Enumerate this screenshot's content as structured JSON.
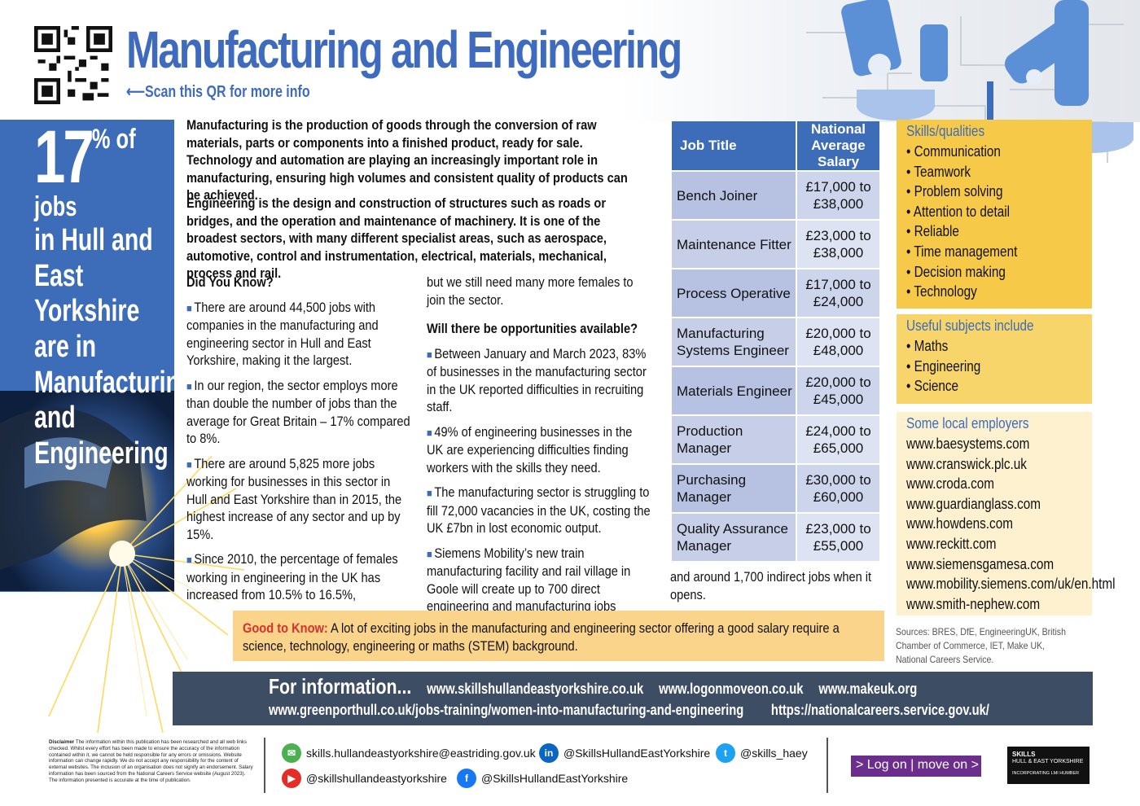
{
  "header": {
    "title": "Manufacturing and Engineering",
    "qr_hint": "⟵Scan this QR for more info"
  },
  "stat": {
    "number": "17",
    "suffix": "% of jobs",
    "line1": "in Hull and East",
    "line2": "Yorkshire are in",
    "line3": "Manufacturing",
    "line4": "and Engineering"
  },
  "intro": {
    "p1": "Manufacturing is the production of goods through the conversion of raw materials, parts or components into a finished product, ready for sale. Technology and automation are playing an increasingly important role in manufacturing, ensuring high volumes and consistent quality of products can be achieved.",
    "p2": "Engineering is the design and construction of structures such as roads or bridges, and the operation and maintenance of machinery. It is one of the broadest sectors, with many different specialist areas, such as aerospace, automotive, control and instrumentation, electrical, materials, mechanical, process and rail."
  },
  "did_you_know": {
    "heading": "Did You Know?",
    "items": [
      "There are around 44,500 jobs with companies in the manufacturing and engineering sector in Hull and East Yorkshire, making it the largest.",
      "In our region, the sector employs more than double the number of jobs than the average for Great Britain – 17% compared to 8%.",
      "There are around 5,825 more jobs working for businesses in this sector in Hull and East Yorkshire than in 2015, the highest increase of any sector and up by 15%.",
      "Since 2010, the percentage of females working in engineering in the UK has increased from 10.5% to 16.5%,"
    ],
    "continuation": "but we still need many more females to join the sector."
  },
  "opportunities": {
    "heading": "Will there be opportunities available?",
    "items": [
      "Between January and March 2023, 83% of businesses in the manufacturing sector in the UK reported difficulties in recruiting staff.",
      "49% of engineering businesses in the UK are experiencing difficulties finding workers with the skills they need.",
      "The manufacturing sector is struggling to fill 72,000 vacancies in the UK, costing the UK £7bn in lost economic output.",
      "Siemens Mobility’s new train manufacturing facility and rail village in Goole will create up to 700 direct engineering and manufacturing jobs"
    ],
    "continuation": "and around 1,700 indirect jobs when it opens."
  },
  "salary_table": {
    "col1": "Job Title",
    "col2": "National Average Salary",
    "rows": [
      {
        "job": "Bench Joiner",
        "salary": "£17,000 to £38,000"
      },
      {
        "job": "Maintenance Fitter",
        "salary": "£23,000 to £38,000"
      },
      {
        "job": "Process Operative",
        "salary": "£17,000 to £24,000"
      },
      {
        "job": "Manufacturing Systems Engineer",
        "salary": "£20,000 to £48,000"
      },
      {
        "job": "Materials Engineer",
        "salary": "£20,000 to £45,000"
      },
      {
        "job": "Production Manager",
        "salary": "£24,000 to £65,000"
      },
      {
        "job": "Purchasing Manager",
        "salary": "£30,000 to £60,000"
      },
      {
        "job": "Quality Assurance Manager",
        "salary": "£23,000 to £55,000"
      }
    ]
  },
  "skills": {
    "heading": "Skills/qualities",
    "items": [
      "Communication",
      "Teamwork",
      "Problem solving",
      "Attention to detail",
      "Reliable",
      "Time management",
      "Decision making",
      "Technology"
    ]
  },
  "subjects": {
    "heading": "Useful subjects include",
    "items": [
      "Maths",
      "Engineering",
      "Science"
    ]
  },
  "employers": {
    "heading": "Some local employers",
    "items": [
      "www.baesystems.com",
      "www.cranswick.plc.uk",
      "www.croda.com",
      "www.guardianglass.com",
      "www.howdens.com",
      "www.reckitt.com",
      "www.siemensgamesa.com",
      "www.mobility.siemens.com/uk/en.html",
      "www.smith-nephew.com"
    ]
  },
  "sources": "Sources: BRES, DfE, EngineeringUK, British Chamber of Commerce, IET, Make UK, National Careers Service.",
  "good_to_know": {
    "label": "Good to Know:",
    "text": "A lot of exciting jobs in the manufacturing and engineering sector offering a good salary require a science, technology, engineering or maths (STEM) background."
  },
  "info_bar": {
    "label": "For information...",
    "link1": "www.skillshullandeastyorkshire.co.uk",
    "link2": "www.logonmoveon.co.uk",
    "link3": "www.makeuk.org",
    "link4": "www.greenporthull.co.uk/jobs-training/women-into-manufacturing-and-engineering",
    "link5": "https://nationalcareers.service.gov.uk/"
  },
  "disclaimer": {
    "label": "Disclaimer",
    "text": "The information within this publication has been researched and all web links checked. Whilst every effort has been made to ensure the accuracy of the information contained within it, we cannot be held responsible for any errors or omissions. Website information can change rapidly. We do not accept any responsibility for the content of external websites. The inclusion of an organisation does not signify an endorsement. Salary information has been sourced from the National Careers Service website (August 2023).",
    "note": "The information presented is accurate at the time of publication."
  },
  "social": {
    "email": "skills.hullandeastyorkshire@eastriding.gov.uk",
    "linkedin": "@SkillsHullandEastYorkshire",
    "twitter": "@skills_haey",
    "youtube": "@skillshullandeastyorkshire",
    "facebook": "@SkillsHullandEastYorkshire",
    "icons": {
      "email": "envelope-icon",
      "linkedin": "linkedin-icon",
      "twitter": "twitter-icon",
      "youtube": "youtube-icon",
      "facebook": "facebook-icon"
    }
  },
  "logos": {
    "logon": "> Log on | move on >",
    "skills_title": "SKILLS",
    "skills_sub": "HULL & EAST YORKSHIRE",
    "skills_incorp": "INCORPORATING LMI HUMBER"
  },
  "colors": {
    "brand_blue": "#3d6cb9",
    "yellow": "#f7c948",
    "good_bg": "#fbd48c",
    "info_bar": "#3d4d63",
    "accent_red": "#d9302c"
  }
}
